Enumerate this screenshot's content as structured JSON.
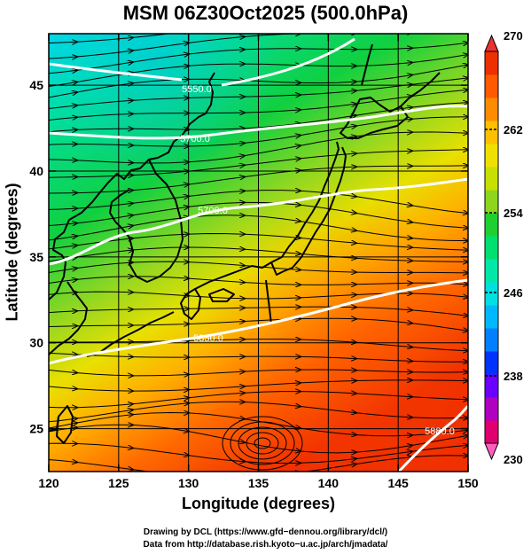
{
  "title": "MSM 06Z30Oct2025 (500.0hPa)",
  "x_axis": {
    "label": "Longitude (degrees)",
    "ticks": [
      "120",
      "125",
      "130",
      "135",
      "140",
      "145",
      "150"
    ]
  },
  "y_axis": {
    "label": "Latitude  (degrees)",
    "ticks": [
      "25",
      "30",
      "35",
      "40",
      "45"
    ]
  },
  "colorbar": {
    "ticks": [
      "270",
      "262",
      "254",
      "246",
      "238",
      "230"
    ],
    "colors": [
      "#e00070",
      "#b000c0",
      "#6a00ff",
      "#0033ff",
      "#0080ff",
      "#00b8ff",
      "#00e0e0",
      "#00e8a8",
      "#00e070",
      "#20d030",
      "#8ed61e",
      "#c8e000",
      "#f0e000",
      "#ffc000",
      "#ff8c00",
      "#ff5a00",
      "#ee3000"
    ]
  },
  "contour_labels": [
    "5550.0",
    "5700.0",
    "5850.0",
    "5700.0",
    "5880.0"
  ],
  "credits": {
    "line1": "Drawing by DCL (https://www.gfd−dennou.org/library/dcl/)",
    "line2": "Data from http://database.rish.kyoto−u.ac.jp/arch/jmadata/"
  }
}
